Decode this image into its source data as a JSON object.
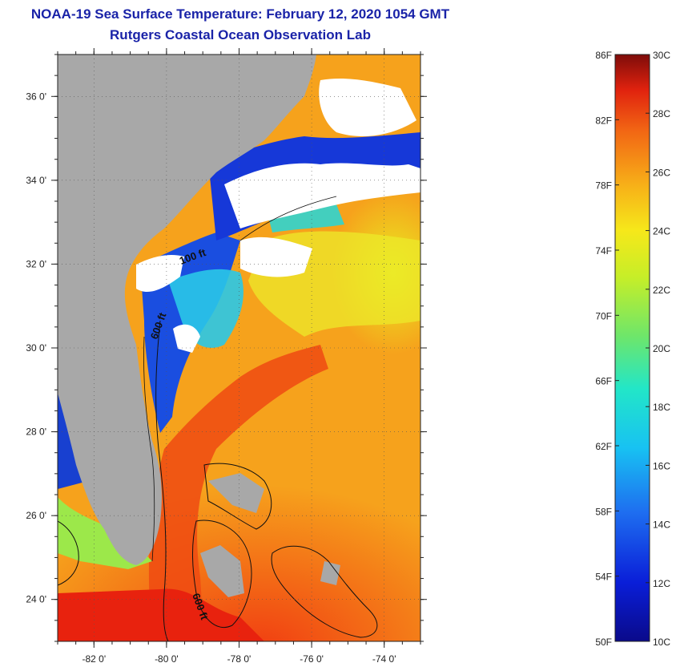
{
  "header": {
    "title": "NOAA-19 Sea Surface Temperature:  February 12, 2020 1054 GMT",
    "subtitle": "Rutgers Coastal Ocean Observation Lab"
  },
  "map": {
    "lon_range": [
      -83,
      -73
    ],
    "lat_range": [
      23,
      37
    ],
    "x_ticks": [
      {
        "value": -82,
        "label": "-82 0'"
      },
      {
        "value": -80,
        "label": "-80 0'"
      },
      {
        "value": -78,
        "label": "-78 0'"
      },
      {
        "value": -76,
        "label": "-76 0'"
      },
      {
        "value": -74,
        "label": "-74 0'"
      }
    ],
    "y_ticks": [
      {
        "value": 36,
        "label": "36 0'"
      },
      {
        "value": 34,
        "label": "34 0'"
      },
      {
        "value": 32,
        "label": "32 0'"
      },
      {
        "value": 30,
        "label": "30 0'"
      },
      {
        "value": 28,
        "label": "28 0'"
      },
      {
        "value": 26,
        "label": "26 0'"
      },
      {
        "value": 24,
        "label": "24 0'"
      }
    ],
    "isobath_labels": [
      "100 ft",
      "600 ft",
      "600 ft"
    ],
    "colors": {
      "land": "#a8a8a8",
      "cloud": "#ffffff",
      "contour": "#111111"
    }
  },
  "colorbar": {
    "fahrenheit_labels": [
      "86F",
      "82F",
      "78F",
      "74F",
      "70F",
      "66F",
      "62F",
      "58F",
      "54F",
      "50F"
    ],
    "celsius_labels": [
      "30C",
      "28C",
      "26C",
      "24C",
      "22C",
      "20C",
      "18C",
      "16C",
      "14C",
      "12C",
      "10C"
    ],
    "range_c": [
      10,
      30
    ],
    "range_f": [
      50,
      86
    ]
  }
}
